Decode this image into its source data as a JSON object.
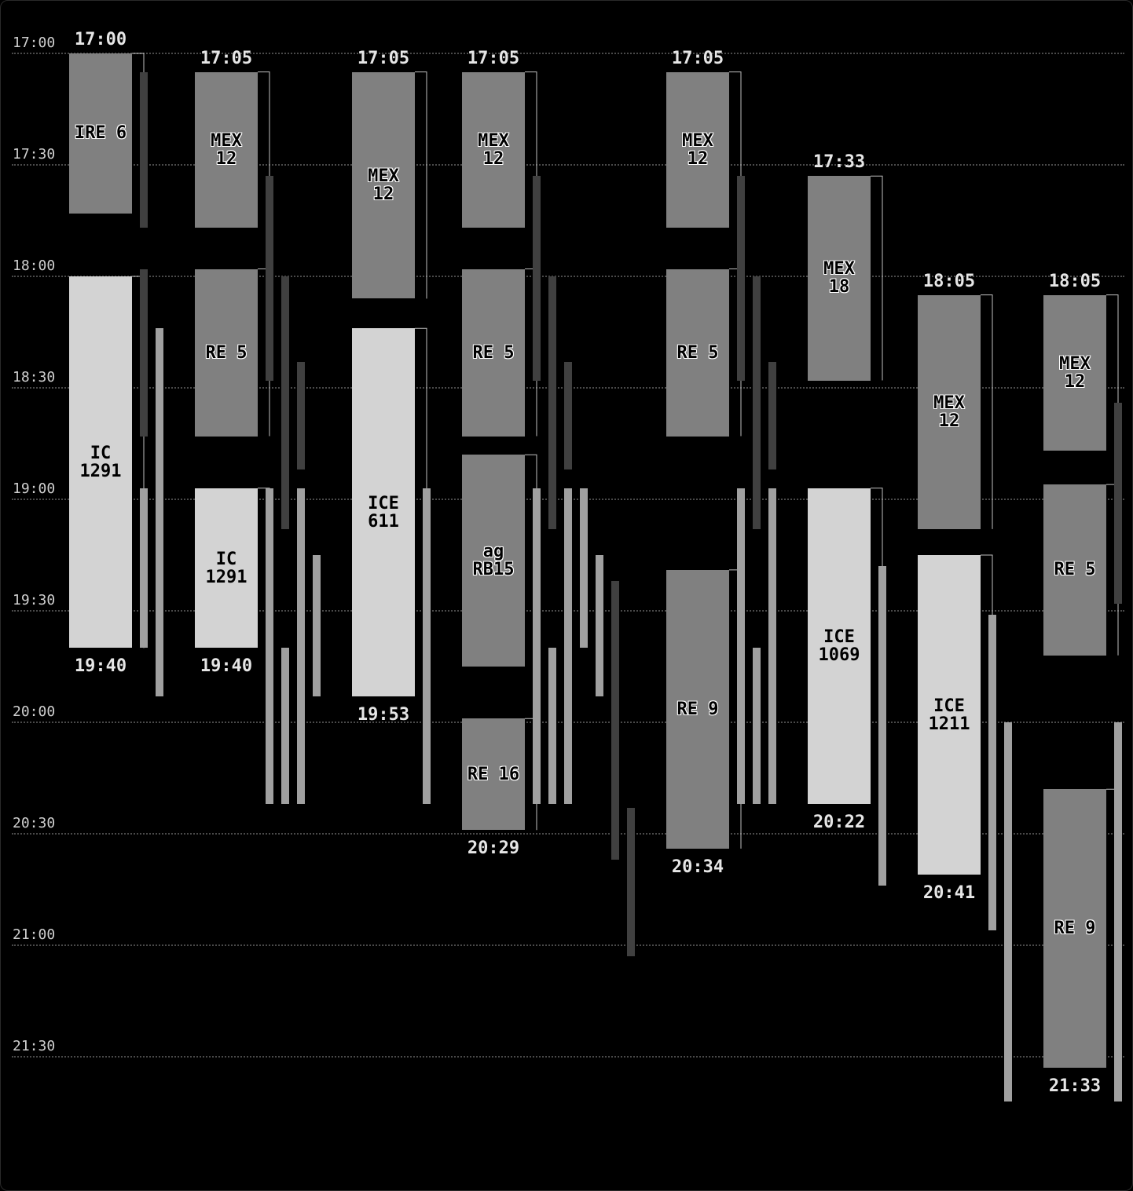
{
  "axis": {
    "ticks": [
      "17:00",
      "17:30",
      "18:00",
      "18:30",
      "19:00",
      "19:30",
      "20:00",
      "20:30",
      "21:00",
      "21:30"
    ]
  },
  "colors": {
    "regional": "#808080",
    "intercity": "#d3d3d3",
    "wait_bar": "#404040",
    "ride_bar": "#a0a0a0",
    "link": "#bfbfbf"
  },
  "journeys": [
    {
      "id": "j1",
      "depart": "17:00",
      "arrive": "19:40",
      "legs": [
        {
          "label": "IRE 6",
          "start": "17:00",
          "end": "17:43",
          "kind": "regional"
        },
        {
          "label": "IC\n1291",
          "start": "18:00",
          "end": "19:40",
          "kind": "ic"
        }
      ]
    },
    {
      "id": "j2",
      "depart": "17:05",
      "arrive": "19:40",
      "legs": [
        {
          "label": "MEX\n12",
          "start": "17:05",
          "end": "17:47",
          "kind": "regional"
        },
        {
          "label": "RE 5",
          "start": "17:58",
          "end": "18:43",
          "kind": "regional"
        },
        {
          "label": "IC\n1291",
          "start": "18:57",
          "end": "19:40",
          "kind": "ic"
        }
      ]
    },
    {
      "id": "j3",
      "depart": "17:05",
      "arrive": "19:53",
      "legs": [
        {
          "label": "MEX\n12",
          "start": "17:05",
          "end": "18:06",
          "kind": "regional"
        },
        {
          "label": "ICE\n611",
          "start": "18:14",
          "end": "19:53",
          "kind": "ic"
        }
      ]
    },
    {
      "id": "j4",
      "depart": "17:05",
      "arrive": "20:29",
      "legs": [
        {
          "label": "MEX\n12",
          "start": "17:05",
          "end": "17:47",
          "kind": "regional"
        },
        {
          "label": "RE 5",
          "start": "17:58",
          "end": "18:43",
          "kind": "regional"
        },
        {
          "label": "ag\nRB15",
          "start": "18:48",
          "end": "19:45",
          "kind": "regional"
        },
        {
          "label": "RE 16",
          "start": "19:59",
          "end": "20:29",
          "kind": "regional"
        }
      ]
    },
    {
      "id": "j5",
      "depart": "17:05",
      "arrive": "20:34",
      "legs": [
        {
          "label": "MEX\n12",
          "start": "17:05",
          "end": "17:47",
          "kind": "regional"
        },
        {
          "label": "RE 5",
          "start": "17:58",
          "end": "18:43",
          "kind": "regional"
        },
        {
          "label": "RE 9",
          "start": "19:19",
          "end": "20:34",
          "kind": "regional"
        }
      ]
    },
    {
      "id": "j6",
      "depart": "17:33",
      "arrive": "20:22",
      "legs": [
        {
          "label": "MEX\n18",
          "start": "17:33",
          "end": "18:28",
          "kind": "regional"
        },
        {
          "label": "ICE\n1069",
          "start": "18:57",
          "end": "20:22",
          "kind": "ic"
        }
      ]
    },
    {
      "id": "j7",
      "depart": "18:05",
      "arrive": "20:41",
      "legs": [
        {
          "label": "MEX\n12",
          "start": "18:05",
          "end": "19:08",
          "kind": "regional"
        },
        {
          "label": "ICE\n1211",
          "start": "19:15",
          "end": "20:41",
          "kind": "ic"
        }
      ]
    },
    {
      "id": "j8",
      "depart": "18:05",
      "arrive": "21:33",
      "legs": [
        {
          "label": "MEX\n12",
          "start": "18:05",
          "end": "18:47",
          "kind": "regional"
        },
        {
          "label": "RE 5",
          "start": "18:56",
          "end": "19:42",
          "kind": "regional"
        },
        {
          "label": "RE 9",
          "start": "20:18",
          "end": "21:33",
          "kind": "regional"
        }
      ]
    }
  ]
}
